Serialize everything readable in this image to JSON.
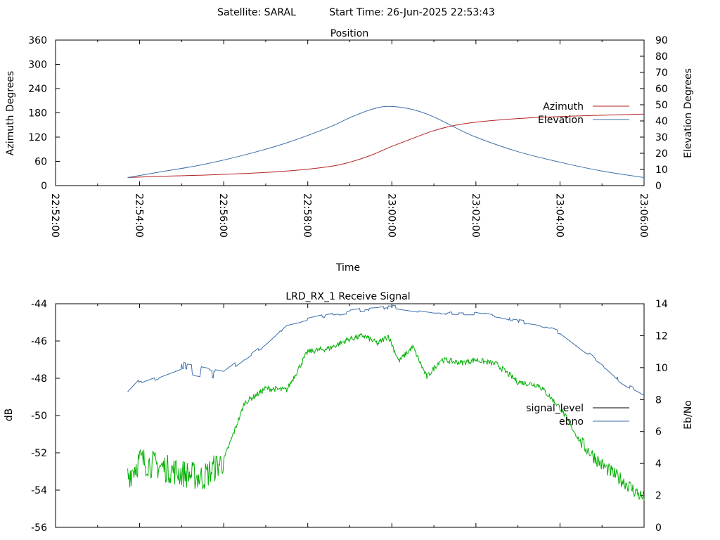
{
  "header": {
    "satellite_label": "Satellite: SARAL",
    "start_time_label": "Start Time: 26-Jun-2025 22:53:43"
  },
  "chart_data": [
    {
      "type": "line",
      "title": "Position",
      "xlabel": "Time",
      "ylabel": "Azimuth Degrees",
      "y2label": "Elevation Degrees",
      "xlim": [
        "22:52:00",
        "23:06:00"
      ],
      "xticks": [
        "22:52:00",
        "22:54:00",
        "22:56:00",
        "22:58:00",
        "23:00:00",
        "23:02:00",
        "23:04:00",
        "23:06:00"
      ],
      "ylim": [
        0,
        360
      ],
      "yticks": [
        "0",
        "60",
        "120",
        "180",
        "240",
        "300",
        "360"
      ],
      "y2lim": [
        0,
        90
      ],
      "y2ticks": [
        "0",
        "10",
        "20",
        "30",
        "40",
        "50",
        "60",
        "70",
        "80",
        "90"
      ],
      "legend_position": "right",
      "series": [
        {
          "name": "Azimuth",
          "axis": "y",
          "color": "#b22222",
          "x": [
            "22:53:43",
            "22:54:30",
            "22:55:30",
            "22:56:30",
            "22:57:30",
            "22:58:30",
            "22:59:00",
            "22:59:30",
            "23:00:00",
            "23:00:30",
            "23:01:00",
            "23:01:30",
            "23:02:00",
            "23:03:00",
            "23:04:00",
            "23:05:00",
            "23:06:00"
          ],
          "y": [
            20,
            23,
            26,
            30,
            36,
            47,
            58,
            75,
            97,
            117,
            136,
            149,
            157,
            166,
            171,
            174,
            177
          ]
        },
        {
          "name": "Elevation",
          "axis": "y2",
          "color": "#3b6ea8",
          "x": [
            "22:53:43",
            "22:54:30",
            "22:55:30",
            "22:56:30",
            "22:57:30",
            "22:58:30",
            "22:59:00",
            "22:59:30",
            "22:59:55",
            "23:00:30",
            "23:01:00",
            "23:01:30",
            "23:02:00",
            "23:03:00",
            "23:04:00",
            "23:05:00",
            "23:06:00"
          ],
          "y": [
            5,
            8.5,
            13,
            19,
            26.5,
            36,
            42,
            47,
            49,
            47,
            42.5,
            36,
            30,
            21,
            14.5,
            9,
            5
          ]
        }
      ]
    },
    {
      "type": "line",
      "title": "LRD_RX_1 Receive Signal",
      "xlabel": "",
      "ylabel": "dB",
      "y2label": "Eb/No",
      "xlim": [
        "22:52:00",
        "23:06:00"
      ],
      "ylim": [
        -56,
        -44
      ],
      "yticks": [
        "-44",
        "-46",
        "-48",
        "-50",
        "-52",
        "-54",
        "-56"
      ],
      "y2lim": [
        0,
        14
      ],
      "y2ticks": [
        "0",
        "2",
        "4",
        "6",
        "8",
        "10",
        "12",
        "14"
      ],
      "legend_position": "right",
      "series": [
        {
          "name": "signal_level",
          "axis": "y",
          "color": "#000000",
          "x": [],
          "y": []
        },
        {
          "name": "ebno",
          "axis": "y2",
          "color": "#3b6ea8",
          "x": [
            "22:53:43",
            "22:54:00",
            "22:55:00",
            "22:56:00",
            "22:56:30",
            "22:57:00",
            "22:57:30",
            "22:58:00",
            "22:58:30",
            "22:59:00",
            "22:59:30",
            "23:00:00",
            "23:00:30",
            "23:01:00",
            "23:01:30",
            "23:02:00",
            "23:02:30",
            "23:03:00",
            "23:03:30",
            "23:04:00",
            "23:04:30",
            "23:05:00",
            "23:05:30",
            "23:06:00"
          ],
          "y": [
            8.2,
            9.0,
            10.0,
            9.5,
            10.5,
            11.5,
            12.7,
            13.0,
            13.3,
            13.5,
            13.7,
            13.8,
            13.6,
            13.4,
            13.4,
            13.4,
            13.2,
            12.9,
            12.7,
            12.2,
            11.2,
            10.2,
            9.0,
            8.3
          ]
        },
        {
          "name": "",
          "axis": "y2",
          "color": "#00b000",
          "x": [
            "22:53:43",
            "22:54:00",
            "22:54:30",
            "22:55:00",
            "22:55:30",
            "22:56:00",
            "22:56:30",
            "22:57:00",
            "22:57:30",
            "22:58:00",
            "22:58:30",
            "22:59:00",
            "22:59:20",
            "22:59:40",
            "22:59:55",
            "23:00:10",
            "23:00:30",
            "23:00:50",
            "23:01:10",
            "23:01:40",
            "23:02:00",
            "23:02:30",
            "23:03:00",
            "23:03:30",
            "23:04:00",
            "23:04:30",
            "23:05:00",
            "23:05:30",
            "23:06:00"
          ],
          "y": [
            3.2,
            4.2,
            3.8,
            3.4,
            3.1,
            4.2,
            7.8,
            8.7,
            8.6,
            11.0,
            11.2,
            11.8,
            12.0,
            11.5,
            12.0,
            10.4,
            11.3,
            9.4,
            10.5,
            10.3,
            10.5,
            10.2,
            9.1,
            8.9,
            7.5,
            5.3,
            3.9,
            2.9,
            1.8
          ]
        }
      ]
    }
  ]
}
